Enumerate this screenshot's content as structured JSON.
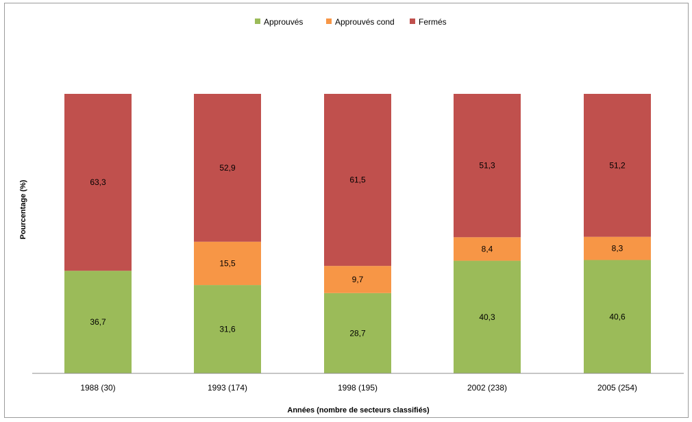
{
  "chart_data": {
    "type": "bar",
    "stacked": true,
    "percent_stacked": true,
    "categories": [
      "1988 (30)",
      "1993 (174)",
      "1998 (195)",
      "2002 (238)",
      "2005 (254)"
    ],
    "series": [
      {
        "name": "Approuvés",
        "values": [
          36.7,
          31.6,
          28.7,
          40.3,
          40.6
        ],
        "labels": [
          "36,7",
          "31,6",
          "28,7",
          "40,3",
          "40,6"
        ]
      },
      {
        "name": "Approuvés cond",
        "values": [
          0,
          15.5,
          9.7,
          8.4,
          8.3
        ],
        "labels": [
          "",
          "15,5",
          "9,7",
          "8,4",
          "8,3"
        ]
      },
      {
        "name": "Fermés",
        "values": [
          63.3,
          52.9,
          61.5,
          51.3,
          51.2
        ],
        "labels": [
          "63,3",
          "52,9",
          "61,5",
          "51,3",
          "51,2"
        ]
      }
    ],
    "colors": [
      "#9bbb59",
      "#f79646",
      "#c0504d"
    ],
    "xlabel": "Années (nombre de secteurs classifiés)",
    "ylabel": "Pourcentage (%)",
    "ylim": [
      0,
      100
    ],
    "grid": false,
    "legend_position": "top"
  }
}
